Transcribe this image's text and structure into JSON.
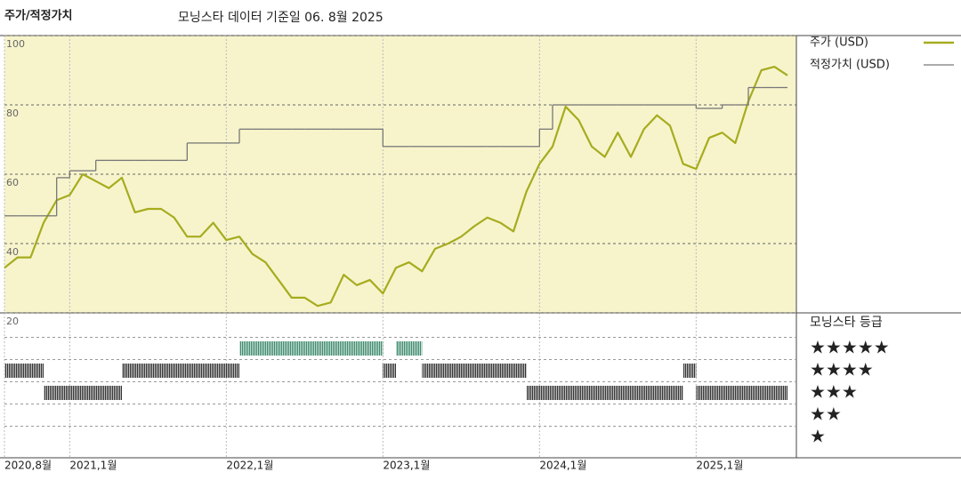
{
  "chart_data": {
    "type": "line",
    "title": "주가/적정가치",
    "subtitle": "모닝스타 데이터 기준일 06. 8월 2025",
    "x": [
      "2020-08",
      "2020-09",
      "2020-10",
      "2020-11",
      "2020-12",
      "2021-01",
      "2021-02",
      "2021-03",
      "2021-04",
      "2021-05",
      "2021-06",
      "2021-07",
      "2021-08",
      "2021-09",
      "2021-10",
      "2021-11",
      "2021-12",
      "2022-01",
      "2022-02",
      "2022-03",
      "2022-04",
      "2022-05",
      "2022-06",
      "2022-07",
      "2022-08",
      "2022-09",
      "2022-10",
      "2022-11",
      "2022-12",
      "2023-01",
      "2023-02",
      "2023-03",
      "2023-04",
      "2023-05",
      "2023-06",
      "2023-07",
      "2023-08",
      "2023-09",
      "2023-10",
      "2023-11",
      "2023-12",
      "2024-01",
      "2024-02",
      "2024-03",
      "2024-04",
      "2024-05",
      "2024-06",
      "2024-07",
      "2024-08",
      "2024-09",
      "2024-10",
      "2024-11",
      "2024-12",
      "2025-01",
      "2025-02",
      "2025-03",
      "2025-04",
      "2025-05",
      "2025-06",
      "2025-07",
      "2025-08"
    ],
    "series": [
      {
        "name": "주가 (USD)",
        "color": "#a6ac1e",
        "values": [
          33,
          36,
          36,
          46,
          52.5,
          54,
          60,
          58,
          56,
          59,
          49,
          50,
          50,
          47.5,
          42,
          42,
          46,
          41,
          42,
          37,
          34.6,
          29.5,
          24.4,
          24.4,
          22,
          23,
          31,
          28,
          29.5,
          25.6,
          33,
          34.6,
          32,
          38.5,
          40,
          42,
          45,
          47.5,
          46,
          43.5,
          55,
          63,
          68,
          79.5,
          75.6,
          68,
          65,
          72,
          65,
          73,
          77,
          74,
          63,
          61.5,
          70.5,
          72,
          69,
          81,
          90,
          91,
          88.5
        ]
      },
      {
        "name": "적정가치 (USD)",
        "color": "#777777",
        "step": true,
        "values": [
          48,
          48,
          48,
          48,
          59,
          61,
          61,
          64,
          64,
          64,
          64,
          64,
          64,
          64,
          69,
          69,
          69,
          69,
          73,
          73,
          73,
          73,
          73,
          73,
          73,
          73,
          73,
          73,
          73,
          68,
          68,
          68,
          68,
          68,
          68,
          68,
          68,
          68,
          68,
          68,
          68,
          73,
          80,
          80,
          80,
          80,
          80,
          80,
          80,
          80,
          80,
          80,
          80,
          79,
          79,
          80,
          80,
          85,
          85,
          85,
          85
        ]
      }
    ],
    "xlim": [
      "2020-08",
      "2025-08"
    ],
    "xticks": [
      {
        "value": "2020-08",
        "label": "2020,8월"
      },
      {
        "value": "2021-01",
        "label": "2021,1월"
      },
      {
        "value": "2022-01",
        "label": "2022,1월"
      },
      {
        "value": "2023-01",
        "label": "2023,1월"
      },
      {
        "value": "2024-01",
        "label": "2024,1월"
      },
      {
        "value": "2025-01",
        "label": "2025,1월"
      }
    ],
    "ylim": [
      20,
      100
    ],
    "yticks": [
      20,
      40,
      60,
      80,
      100
    ],
    "grid": true,
    "background": "#f7f4cc",
    "rating_title": "모닝스타 등급",
    "rating_labels": [
      "★★★★★",
      "★★★★",
      "★★★",
      "★★",
      "★"
    ],
    "rating_colors": {
      "5": "#3d8a6c",
      "other": "#333333"
    },
    "ratings": [
      {
        "start": "2020-08",
        "end": "2020-11",
        "stars": 4
      },
      {
        "start": "2020-11",
        "end": "2021-05",
        "stars": 3
      },
      {
        "start": "2021-05",
        "end": "2022-02",
        "stars": 4
      },
      {
        "start": "2022-02",
        "end": "2023-01",
        "stars": 5
      },
      {
        "start": "2023-01",
        "end": "2023-02",
        "stars": 4
      },
      {
        "start": "2023-02",
        "end": "2023-04",
        "stars": 5
      },
      {
        "start": "2023-04",
        "end": "2023-12",
        "stars": 4
      },
      {
        "start": "2023-12",
        "end": "2024-12",
        "stars": 3
      },
      {
        "start": "2024-12",
        "end": "2025-01",
        "stars": 4
      },
      {
        "start": "2025-01",
        "end": "2025-08",
        "stars": 3
      }
    ]
  }
}
